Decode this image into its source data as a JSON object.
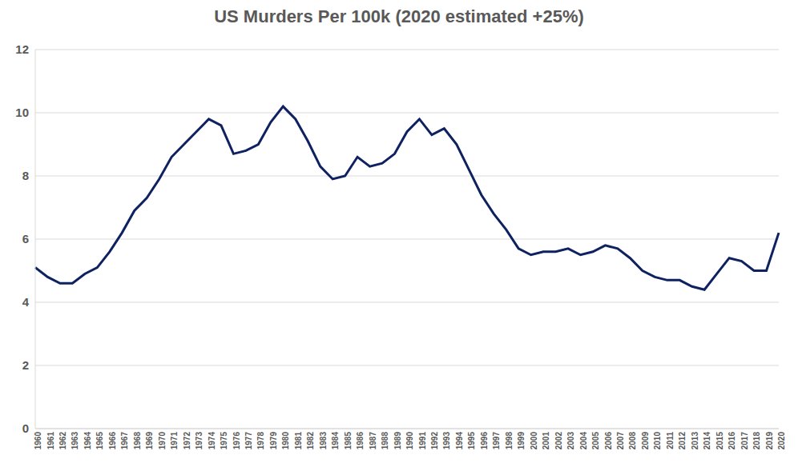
{
  "chart_data": {
    "type": "line",
    "title": "US Murders Per 100k (2020 estimated +25%)",
    "categories": [
      "1960",
      "1961",
      "1962",
      "1963",
      "1964",
      "1965",
      "1966",
      "1967",
      "1968",
      "1969",
      "1970",
      "1971",
      "1972",
      "1973",
      "1974",
      "1975",
      "1976",
      "1977",
      "1978",
      "1979",
      "1980",
      "1981",
      "1982",
      "1983",
      "1984",
      "1985",
      "1986",
      "1987",
      "1988",
      "1989",
      "1990",
      "1991",
      "1992",
      "1993",
      "1994",
      "1995",
      "1996",
      "1997",
      "1998",
      "1999",
      "2000",
      "2001",
      "2002",
      "2003",
      "2004",
      "2005",
      "2006",
      "2007",
      "2008",
      "2009",
      "2010",
      "2011",
      "2012",
      "2013",
      "2014",
      "2015",
      "2016",
      "2017",
      "2018",
      "2019",
      "2020"
    ],
    "values": [
      5.1,
      4.8,
      4.6,
      4.6,
      4.9,
      5.1,
      5.6,
      6.2,
      6.9,
      7.3,
      7.9,
      8.6,
      9.0,
      9.4,
      9.8,
      9.6,
      8.7,
      8.8,
      9.0,
      9.7,
      10.2,
      9.8,
      9.1,
      8.3,
      7.9,
      8.0,
      8.6,
      8.3,
      8.4,
      8.7,
      9.4,
      9.8,
      9.3,
      9.5,
      9.0,
      8.2,
      7.4,
      6.8,
      6.3,
      5.7,
      5.5,
      5.6,
      5.6,
      5.7,
      5.5,
      5.6,
      5.8,
      5.7,
      5.4,
      5.0,
      4.8,
      4.7,
      4.7,
      4.5,
      4.4,
      4.9,
      5.4,
      5.3,
      5.0,
      5.0,
      6.2
    ],
    "color": "#0e2160",
    "ylim": [
      0,
      12
    ],
    "yticks": [
      0,
      2,
      4,
      6,
      8,
      10,
      12
    ],
    "grid": true
  }
}
